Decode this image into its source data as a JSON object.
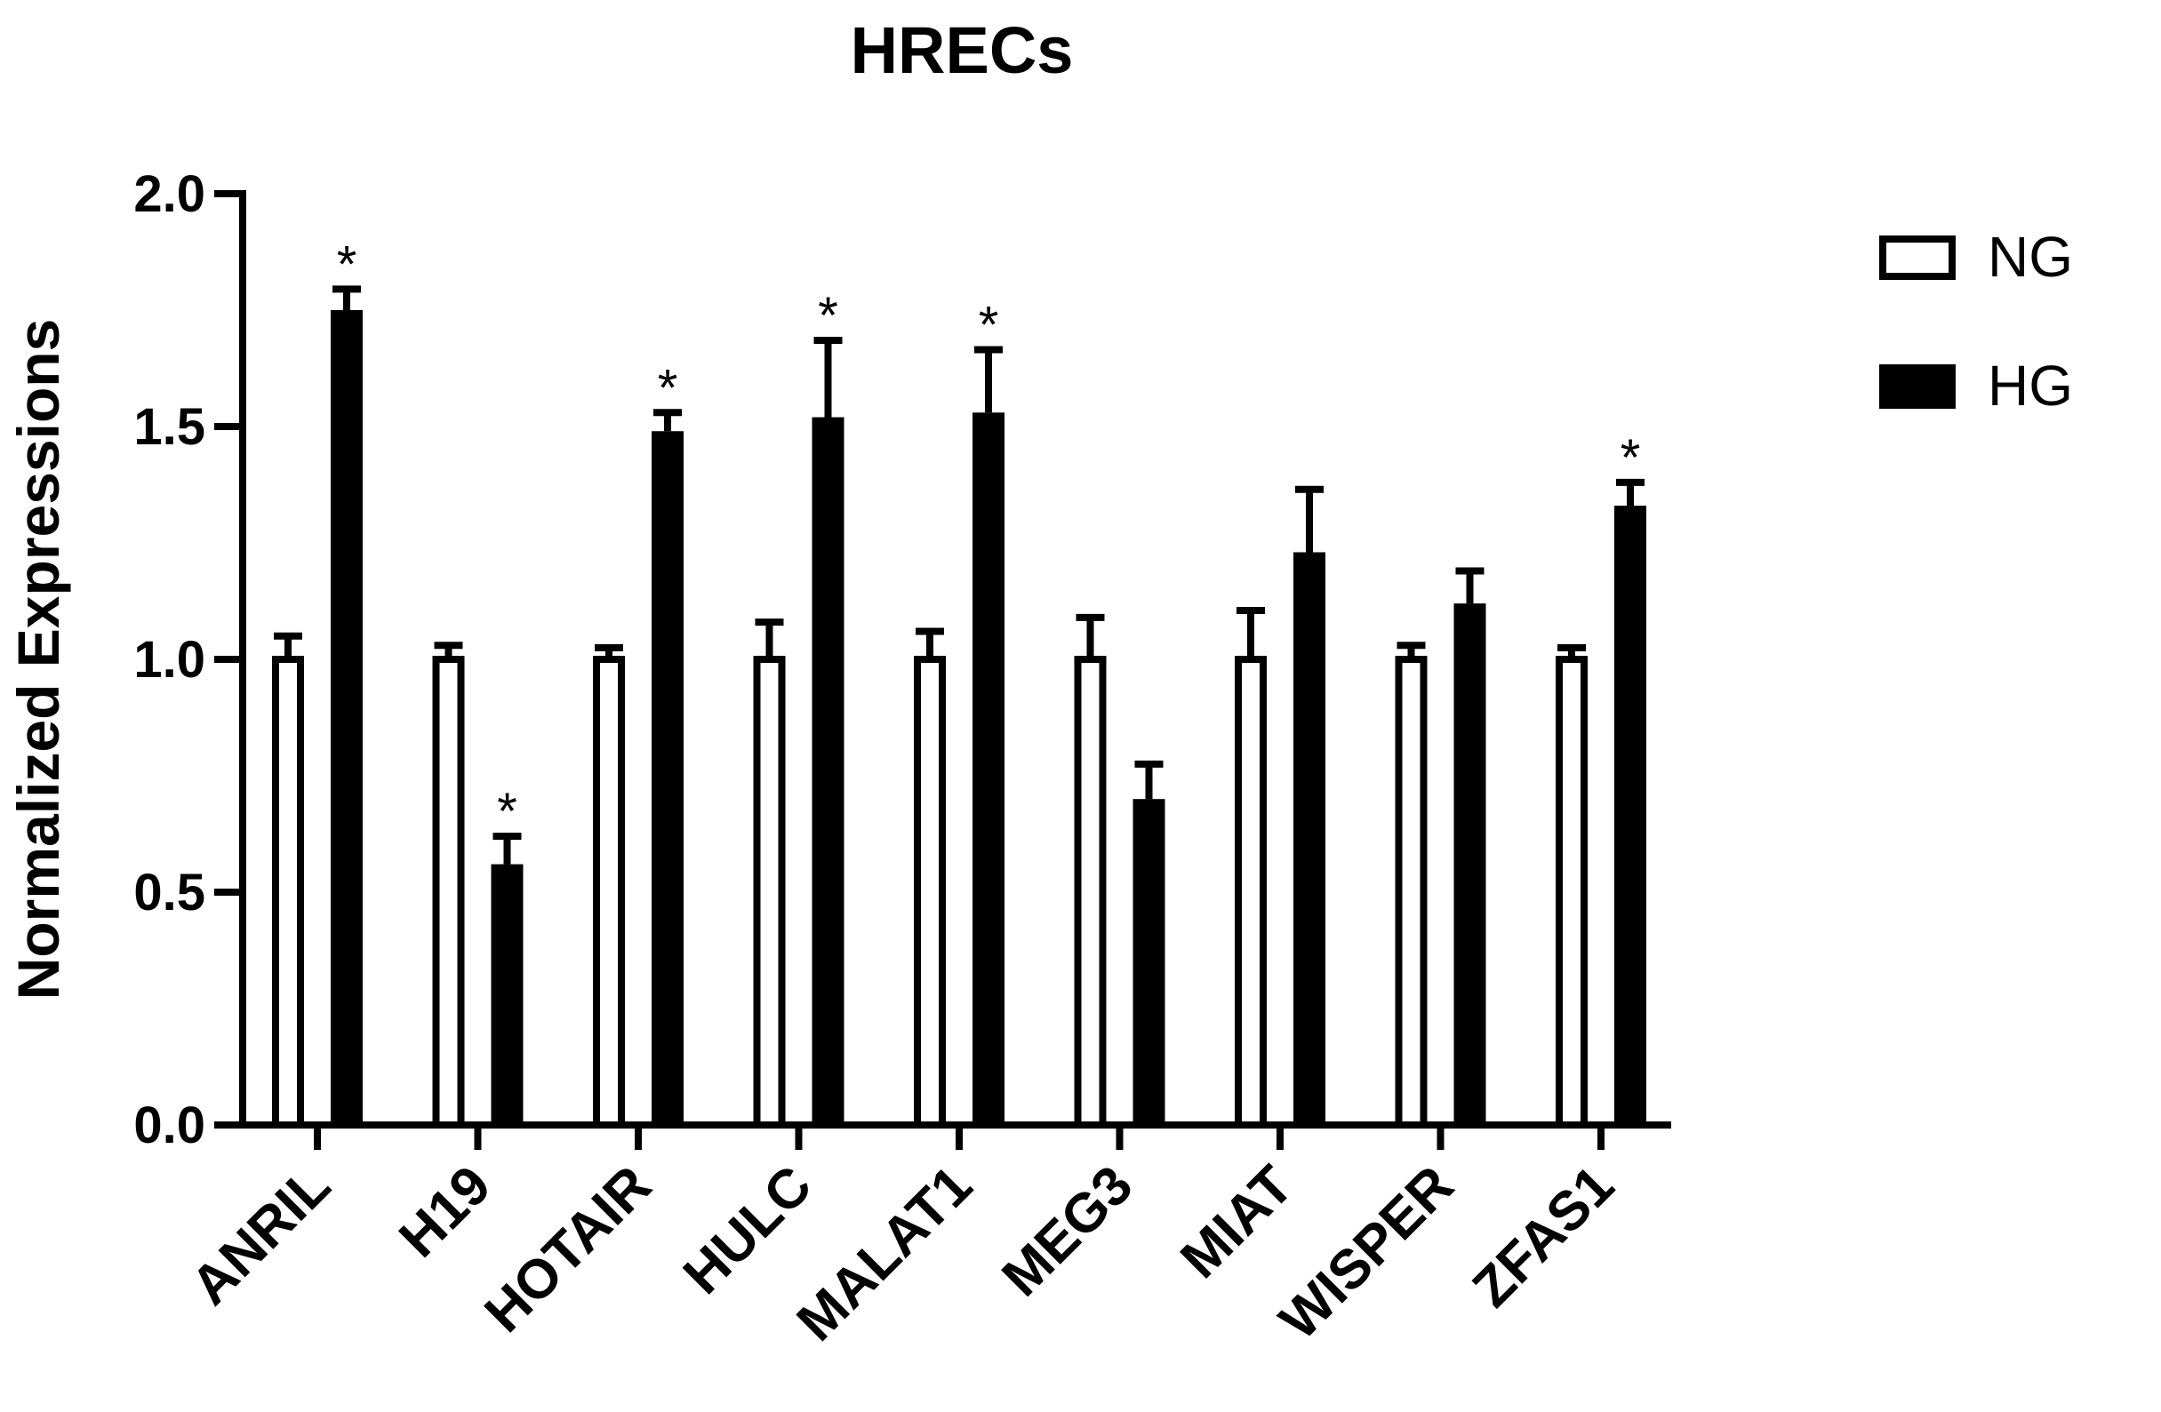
{
  "chart_data": {
    "type": "bar",
    "title": "HRECs",
    "xlabel": "",
    "ylabel": "Normalized Expressions",
    "ylim": [
      0,
      2.0
    ],
    "yticks": [
      "0.0",
      "0.5",
      "1.0",
      "1.5",
      "2.0"
    ],
    "grid": false,
    "legend_position": "top-right",
    "categories": [
      "ANRIL",
      "H19",
      "HOTAIR",
      "HULC",
      "MALAT1",
      "MEG3",
      "MIAT",
      "WISPER",
      "ZFAS1"
    ],
    "series": [
      {
        "name": "NG",
        "fill": "#ffffff",
        "stroke": "#000000",
        "values": [
          1.0,
          1.0,
          1.0,
          1.0,
          1.0,
          1.0,
          1.0,
          1.0,
          1.0
        ],
        "errors": [
          0.05,
          0.03,
          0.025,
          0.08,
          0.06,
          0.09,
          0.105,
          0.03,
          0.025
        ]
      },
      {
        "name": "HG",
        "fill": "#000000",
        "stroke": "#000000",
        "values": [
          1.75,
          0.56,
          1.49,
          1.52,
          1.53,
          0.7,
          1.23,
          1.12,
          1.33
        ],
        "errors": [
          0.045,
          0.06,
          0.04,
          0.165,
          0.135,
          0.075,
          0.135,
          0.07,
          0.05
        ]
      }
    ],
    "significance_marker": "*",
    "significant": [
      true,
      true,
      true,
      true,
      true,
      false,
      false,
      false,
      true
    ]
  }
}
